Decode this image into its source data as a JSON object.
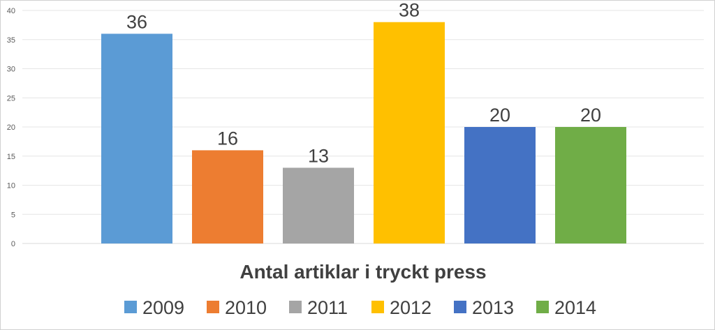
{
  "chart_data": {
    "type": "bar",
    "title": "Antal artiklar i tryckt press",
    "categories": [
      "2009",
      "2010",
      "2011",
      "2012",
      "2013",
      "2014"
    ],
    "values": [
      36,
      16,
      13,
      38,
      20,
      20
    ],
    "colors": [
      "#5B9BD5",
      "#ED7D31",
      "#A5A5A5",
      "#FFC000",
      "#4472C4",
      "#70AD47"
    ],
    "ylim": [
      0,
      40
    ],
    "yticks": [
      0,
      5,
      10,
      15,
      20,
      25,
      30,
      35,
      40
    ],
    "grid": true,
    "legend_position": "bottom",
    "legend": [
      "2009",
      "2010",
      "2011",
      "2012",
      "2013",
      "2014"
    ],
    "xlabel": "",
    "ylabel": ""
  }
}
